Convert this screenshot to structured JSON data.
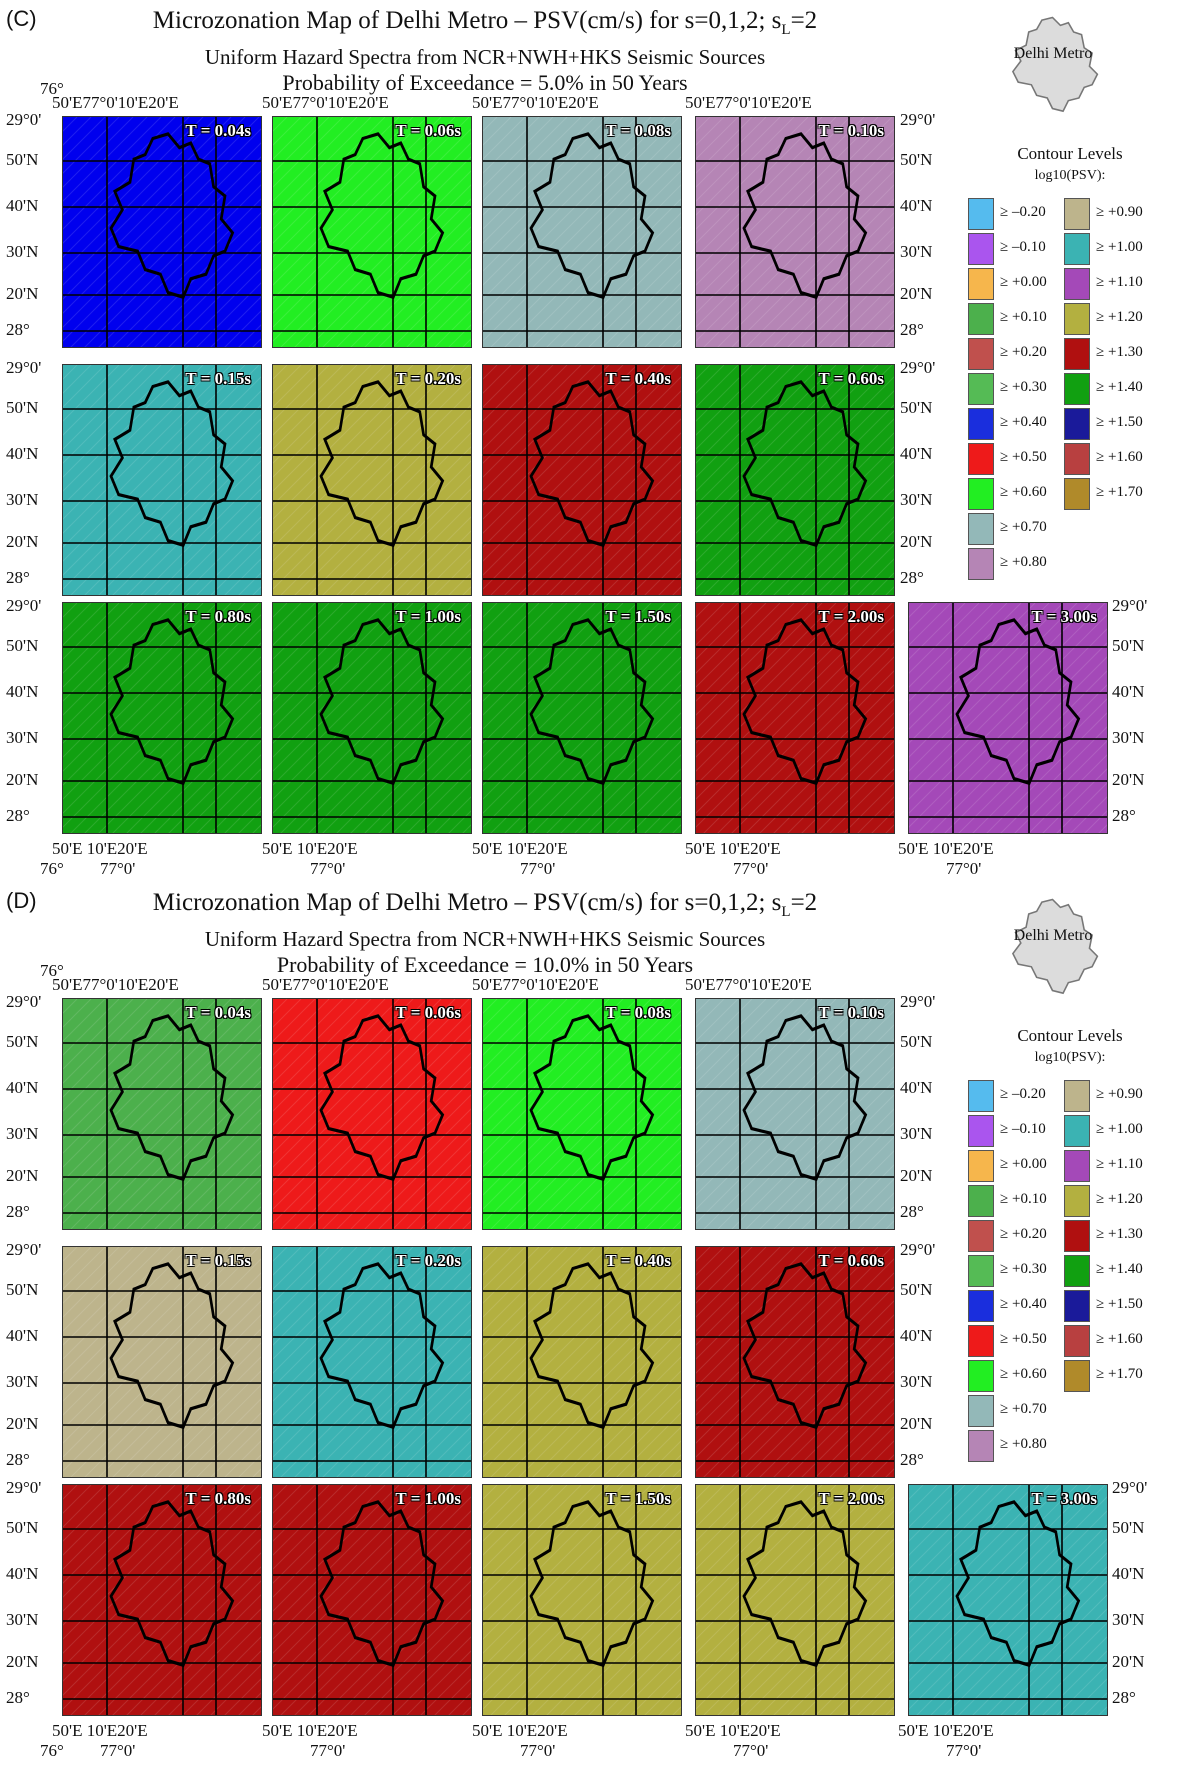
{
  "sections": [
    {
      "label": "(C)",
      "title": "Microzonation Map of Delhi Metro – PSV(cm/s) for s=0,1,2; s",
      "title_sub": "L",
      "title_tail": "=2",
      "subtitle": "Uniform Hazard Spectra from NCR+NWH+HKS Seismic Sources",
      "probability": "Probability of Exceedance =  5.0% in 50 Years",
      "inset_label": "Delhi Metro",
      "rows": [
        [
          "T = 0.04s",
          "T = 0.06s",
          "T = 0.08s",
          "T = 0.10s"
        ],
        [
          "T = 0.15s",
          "T = 0.20s",
          "T = 0.40s",
          "T = 0.60s"
        ],
        [
          "T = 0.80s",
          "T = 1.00s",
          "T = 1.50s",
          "T = 2.00s",
          "T = 3.00s"
        ]
      ],
      "panel_colors": [
        [
          "#0000ee",
          "#22ee22",
          "#93b8b8",
          "#b585b5"
        ],
        [
          "#3bb3b3",
          "#b3b040",
          "#b01010",
          "#11a011"
        ],
        [
          "#11a011",
          "#11a011",
          "#11a011",
          "#b01010",
          "#a449b8"
        ]
      ]
    },
    {
      "label": "(D)",
      "title": "Microzonation Map of Delhi Metro – PSV(cm/s) for s=0,1,2; s",
      "title_sub": "L",
      "title_tail": "=2",
      "subtitle": "Uniform Hazard Spectra from NCR+NWH+HKS Seismic Sources",
      "probability": "Probability of Exceedance = 10.0% in 50 Years",
      "inset_label": "Delhi Metro",
      "rows": [
        [
          "T = 0.04s",
          "T = 0.06s",
          "T = 0.08s",
          "T = 0.10s"
        ],
        [
          "T = 0.15s",
          "T = 0.20s",
          "T = 0.40s",
          "T = 0.60s"
        ],
        [
          "T = 0.80s",
          "T = 1.00s",
          "T = 1.50s",
          "T = 2.00s",
          "T = 3.00s"
        ]
      ],
      "panel_colors": [
        [
          "#4cb04c",
          "#ee1a1a",
          "#22ee22",
          "#93b8b8"
        ],
        [
          "#bdb48c",
          "#3bb3b3",
          "#b3b040",
          "#b01010"
        ],
        [
          "#b01010",
          "#b01010",
          "#b3b040",
          "#b3b040",
          "#3bb3b3"
        ]
      ]
    }
  ],
  "axis": {
    "lat_ticks": [
      "29°0'",
      "50'N",
      "40'N",
      "30'N",
      "20'N",
      "28°"
    ],
    "lon_ticks": [
      "50'E",
      "77°0'",
      "10'E",
      "20'E"
    ],
    "lon_start": "76°"
  },
  "legend": {
    "title": "Contour Levels",
    "subtitle": "log10(PSV):",
    "left": [
      {
        "label": "≥ –0.20",
        "color": "#55bbee"
      },
      {
        "label": "≥ –0.10",
        "color": "#aa55ee"
      },
      {
        "label": "≥ +0.00",
        "color": "#f6b64c"
      },
      {
        "label": "≥ +0.10",
        "color": "#4cb04c"
      },
      {
        "label": "≥ +0.20",
        "color": "#c0504d"
      },
      {
        "label": "≥ +0.30",
        "color": "#55bb55"
      },
      {
        "label": "≥ +0.40",
        "color": "#1a2edd"
      },
      {
        "label": "≥ +0.50",
        "color": "#ee1a1a"
      },
      {
        "label": "≥ +0.60",
        "color": "#22ee22"
      },
      {
        "label": "≥ +0.70",
        "color": "#93b8b8"
      },
      {
        "label": "≥ +0.80",
        "color": "#b585b5"
      }
    ],
    "right": [
      {
        "label": "≥ +0.90",
        "color": "#bdb48c"
      },
      {
        "label": "≥ +1.00",
        "color": "#3bb3b3"
      },
      {
        "label": "≥ +1.10",
        "color": "#a449b8"
      },
      {
        "label": "≥ +1.20",
        "color": "#b3b040"
      },
      {
        "label": "≥ +1.30",
        "color": "#b01010"
      },
      {
        "label": "≥ +1.40",
        "color": "#11a011"
      },
      {
        "label": "≥ +1.50",
        "color": "#1a1a9a"
      },
      {
        "label": "≥ +1.60",
        "color": "#b84040"
      },
      {
        "label": "≥ +1.70",
        "color": "#b08a2a"
      }
    ]
  }
}
